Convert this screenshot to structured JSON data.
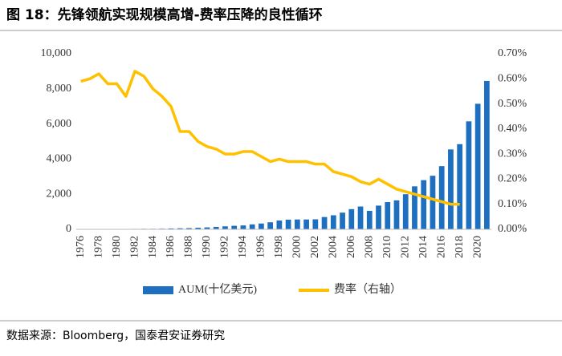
{
  "chart_data": {
    "type": "bar-line",
    "title": "图 18：先锋领航实现规模高增-费率压降的良性循环",
    "source": "数据来源：Bloomberg，国泰君安证券研究",
    "categories": [
      "1976",
      null,
      "1978",
      null,
      "1980",
      null,
      "1982",
      null,
      "1984",
      null,
      "1986",
      null,
      "1988",
      null,
      "1990",
      null,
      "1992",
      null,
      "1994",
      null,
      "1996",
      null,
      "1998",
      null,
      "2000",
      null,
      "2002",
      null,
      "2004",
      null,
      "2006",
      null,
      "2008",
      null,
      "2010",
      null,
      "2012",
      null,
      "2014",
      null,
      "2016",
      null,
      "2018",
      null,
      "2020",
      null
    ],
    "series": [
      {
        "name": "AUM(十亿美元)",
        "color": "#1f6fc0",
        "kind": "bar",
        "values": [
          10,
          10,
          10,
          15,
          20,
          20,
          25,
          30,
          30,
          35,
          50,
          60,
          70,
          90,
          110,
          140,
          170,
          200,
          220,
          280,
          330,
          400,
          500,
          550,
          560,
          560,
          570,
          700,
          800,
          950,
          1150,
          1300,
          1050,
          1350,
          1550,
          1650,
          2000,
          2450,
          2800,
          3050,
          3600,
          4550,
          4850,
          6150,
          7150,
          8450
        ]
      },
      {
        "name": "费率（右轴）",
        "color": "#ffc000",
        "kind": "line",
        "axis": "y2",
        "values": [
          0.59,
          0.6,
          0.62,
          0.58,
          0.58,
          0.53,
          0.63,
          0.61,
          0.56,
          0.53,
          0.49,
          0.39,
          0.39,
          0.35,
          0.33,
          0.32,
          0.3,
          0.3,
          0.31,
          0.31,
          0.29,
          0.27,
          0.28,
          0.27,
          0.27,
          0.27,
          0.26,
          0.26,
          0.23,
          0.22,
          0.21,
          0.19,
          0.18,
          0.2,
          0.18,
          0.16,
          0.15,
          0.14,
          0.13,
          0.12,
          0.11,
          0.1,
          0.1,
          null,
          null,
          null
        ]
      }
    ],
    "ylim": [
      0,
      10000
    ],
    "yticks": [
      0,
      {
        "value": 2000,
        "label": "2,000"
      },
      {
        "value": 4000,
        "label": "4,000"
      },
      {
        "value": 6000,
        "label": "6,000"
      },
      {
        "value": 8000,
        "label": "8,000"
      },
      {
        "value": 10000,
        "label": "10,000"
      }
    ],
    "y2lim": [
      0,
      0.7
    ],
    "y2ticks": [
      {
        "value": 0,
        "label": "0.00%"
      },
      {
        "value": 0.1,
        "label": "0.10%"
      },
      {
        "value": 0.2,
        "label": "0.20%"
      },
      {
        "value": 0.3,
        "label": "0.30%"
      },
      {
        "value": 0.4,
        "label": "0.40%"
      },
      {
        "value": 0.5,
        "label": "0.50%"
      },
      {
        "value": 0.6,
        "label": "0.60%"
      },
      {
        "value": 0.7,
        "label": "0.70%"
      }
    ],
    "grid": false
  }
}
